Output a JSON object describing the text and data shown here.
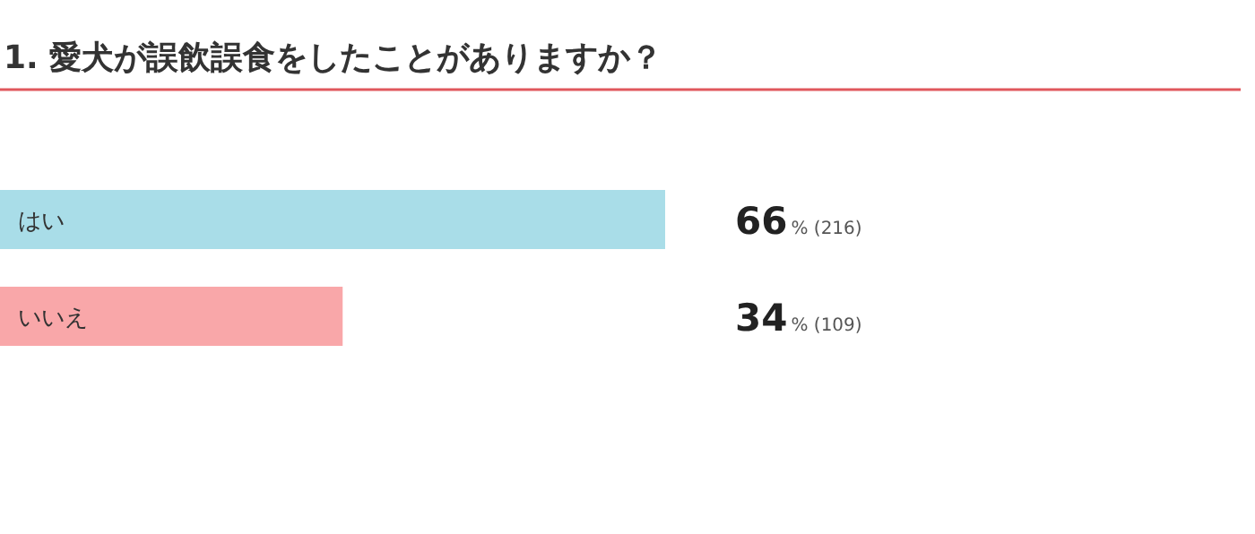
{
  "chart_data": {
    "type": "bar",
    "orientation": "horizontal",
    "title": "1. 愛犬が誤飲誤食をしたことがありますか？",
    "categories": [
      "はい",
      "いいえ"
    ],
    "values": [
      66,
      34
    ],
    "colors": [
      "#a9dde8",
      "#f9a7a9"
    ],
    "value_labels": [
      "66% (216)",
      "34% (109)"
    ]
  }
}
